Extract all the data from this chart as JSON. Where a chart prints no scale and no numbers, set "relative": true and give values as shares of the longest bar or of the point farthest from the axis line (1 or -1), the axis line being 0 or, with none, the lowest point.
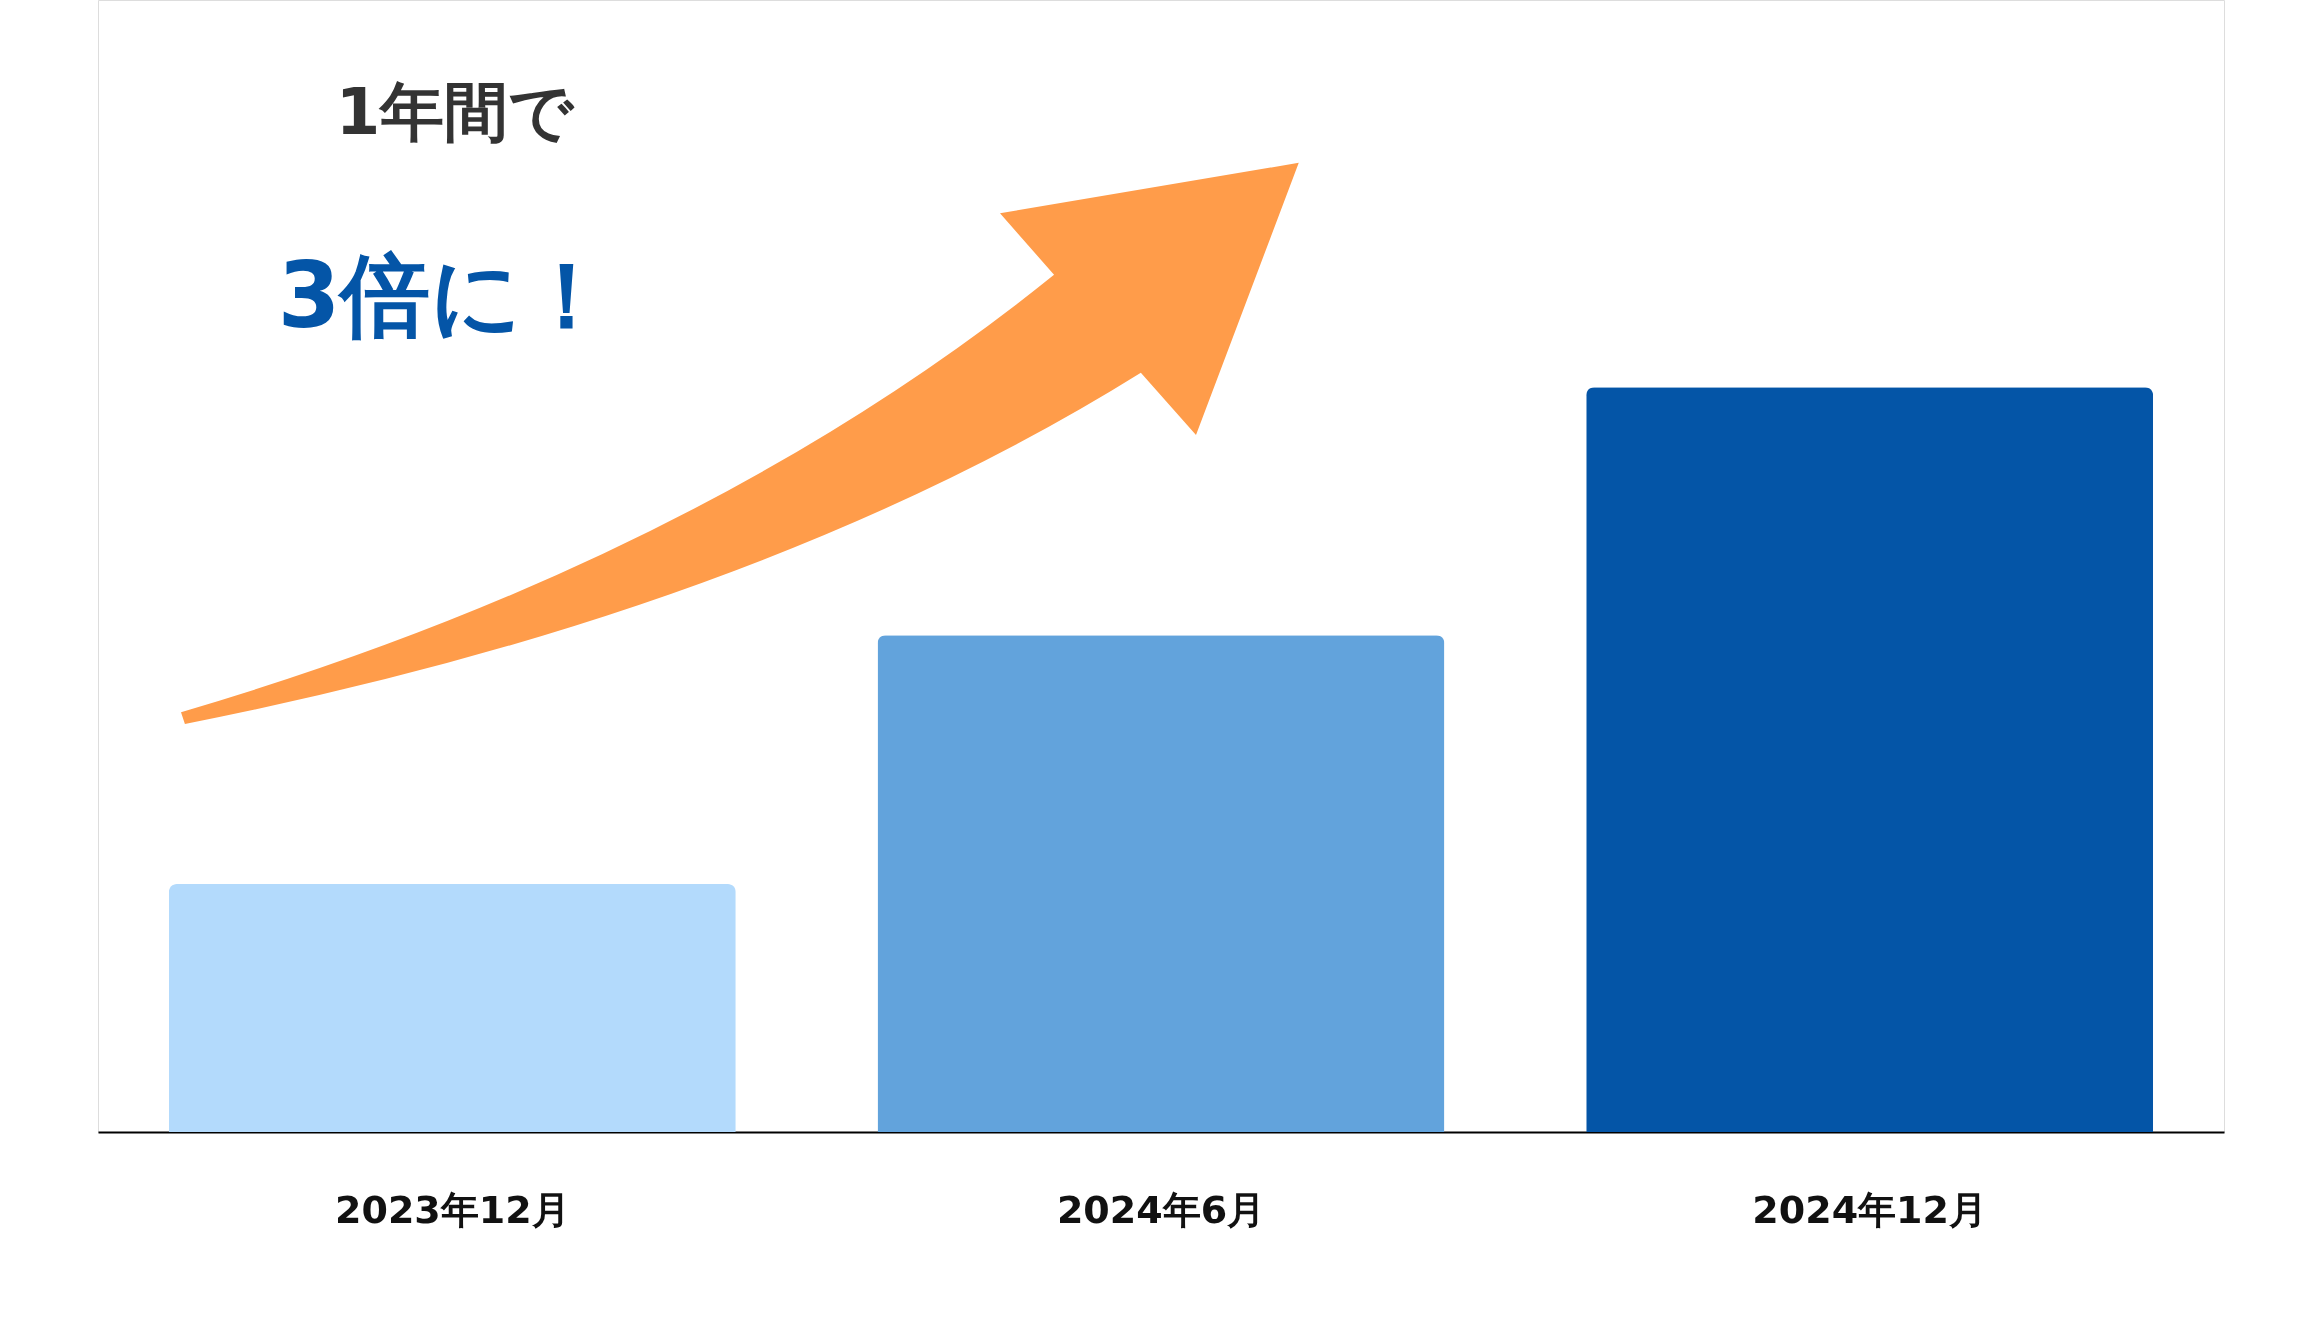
{
  "chart_data": {
    "type": "bar",
    "relative": true,
    "categories": [
      "2023年12月",
      "2024年6月",
      "2024年12月"
    ],
    "values": [
      0.333,
      0.667,
      1
    ],
    "colors": [
      "#b3dafc",
      "#62a3dc",
      "#0455a7"
    ],
    "annotations": [
      "1年間で",
      "3倍に！"
    ],
    "grid": false
  }
}
